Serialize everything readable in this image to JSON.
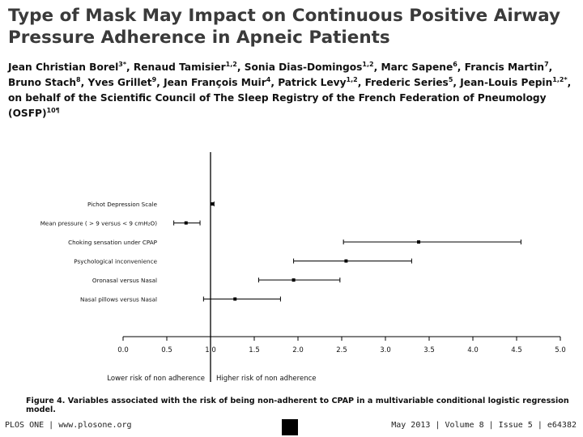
{
  "paper": {
    "title": "Type of Mask May Impact on Continuous Positive Airway Pressure Adherence in Apneic Patients",
    "authors": [
      {
        "name": "Jean Christian Borel",
        "aff": "3*"
      },
      {
        "name": "Renaud Tamisier",
        "aff": "1,2"
      },
      {
        "name": "Sonia Dias-Domingos",
        "aff": "1,2"
      },
      {
        "name": "Marc Sapene",
        "aff": "6"
      },
      {
        "name": "Francis Martin",
        "aff": "7"
      },
      {
        "name": "Bruno Stach",
        "aff": "8"
      },
      {
        "name": "Yves Grillet",
        "aff": "9"
      },
      {
        "name": "Jean François Muir",
        "aff": "4"
      },
      {
        "name": "Patrick Levy",
        "aff": "1,2"
      },
      {
        "name": "Frederic Series",
        "aff": "5"
      },
      {
        "name": "Jean-Louis Pepin",
        "aff": "1,2*"
      }
    ],
    "behalf": "on behalf of the Scientific Council of The Sleep Registry of the French Federation of Pneumology (OSFP)",
    "behalf_aff": "10¶",
    "caption": "Figure 4. Variables associated with the risk of being non-adherent to CPAP in a multivariable conditional logistic regression model.",
    "footer_left": "PLOS ONE | www.plosone.org",
    "footer_right": "May 2013 | Volume 8 | Issue 5 | e64382"
  },
  "chart_data": {
    "type": "forest",
    "title": "",
    "xlabel": "",
    "ylabel": "",
    "xlim": [
      0.0,
      5.0
    ],
    "xticks": [
      "0.0",
      "0.5",
      "1.0",
      "1.5",
      "2.0",
      "2.5",
      "3.0",
      "3.5",
      "4.0",
      "4.5",
      "5.0"
    ],
    "reference_line": 1.0,
    "grid": false,
    "rows": [
      {
        "label": "Pichot Depression Scale",
        "estimate": 1.02,
        "lower": 1.0,
        "upper": 1.04
      },
      {
        "label": "Mean pressure ( > 9 versus < 9 cmH₂O)",
        "estimate": 0.72,
        "lower": 0.58,
        "upper": 0.88
      },
      {
        "label": "Choking sensation under CPAP",
        "estimate": 3.38,
        "lower": 2.52,
        "upper": 4.55
      },
      {
        "label": "Psychological inconvenience",
        "estimate": 2.55,
        "lower": 1.95,
        "upper": 3.3
      },
      {
        "label": "Oronasal versus Nasal",
        "estimate": 1.95,
        "lower": 1.55,
        "upper": 2.48
      },
      {
        "label": "Nasal pillows versus Nasal",
        "estimate": 1.28,
        "lower": 0.92,
        "upper": 1.8
      }
    ],
    "annotations": {
      "left": "Lower risk of non adherence",
      "right": "Higher risk of non adherence"
    }
  }
}
